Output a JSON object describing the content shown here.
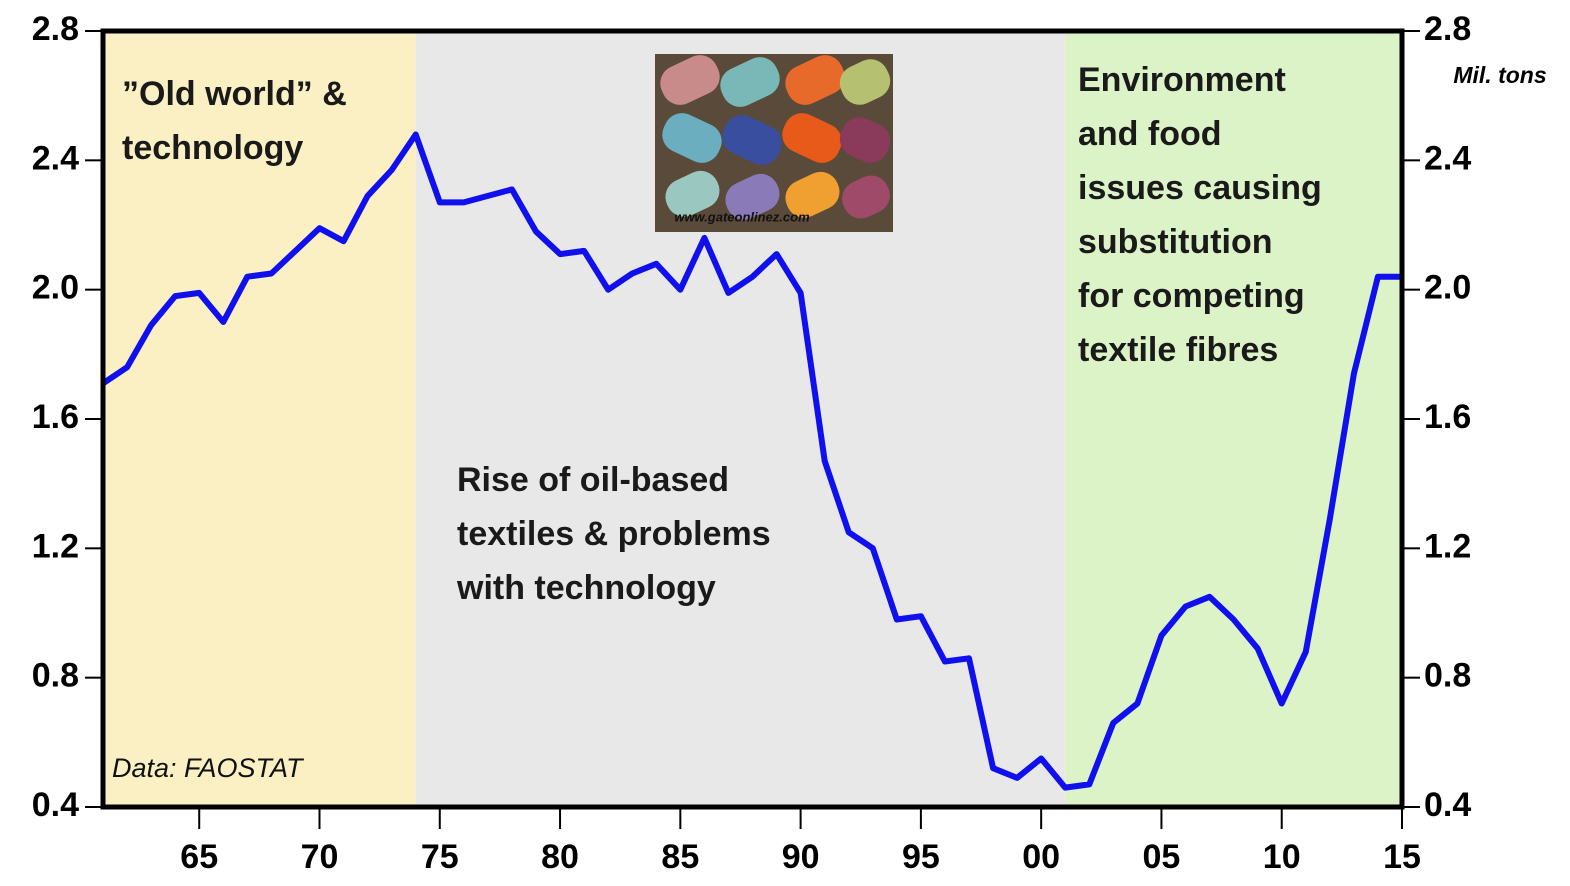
{
  "chart_data": {
    "type": "line",
    "x": [
      1961,
      1962,
      1963,
      1964,
      1965,
      1966,
      1967,
      1968,
      1969,
      1970,
      1971,
      1972,
      1973,
      1974,
      1975,
      1976,
      1977,
      1978,
      1979,
      1980,
      1981,
      1982,
      1983,
      1984,
      1985,
      1986,
      1987,
      1988,
      1989,
      1990,
      1991,
      1992,
      1993,
      1994,
      1995,
      1996,
      1997,
      1998,
      1999,
      2000,
      2001,
      2002,
      2003,
      2004,
      2005,
      2006,
      2007,
      2008,
      2009,
      2010,
      2011,
      2012,
      2013,
      2014,
      2015
    ],
    "series": [
      {
        "color": "#1010ee",
        "values": [
          1.71,
          1.76,
          1.89,
          1.98,
          1.99,
          1.9,
          2.04,
          2.05,
          2.12,
          2.19,
          2.15,
          2.29,
          2.37,
          2.48,
          2.27,
          2.27,
          2.29,
          2.31,
          2.18,
          2.11,
          2.12,
          2.0,
          2.05,
          2.08,
          2.0,
          2.16,
          1.99,
          2.04,
          2.11,
          1.99,
          1.47,
          1.25,
          1.2,
          0.98,
          0.99,
          0.85,
          0.86,
          0.52,
          0.49,
          0.55,
          0.46,
          0.47,
          0.66,
          0.72,
          0.93,
          1.02,
          1.05,
          0.98,
          0.89,
          0.72,
          0.88,
          1.29,
          1.74,
          2.04,
          2.04
        ]
      }
    ],
    "xlim": [
      1961,
      2015
    ],
    "xticks": [
      {
        "value": 1965,
        "label": "65"
      },
      {
        "value": 1970,
        "label": "70"
      },
      {
        "value": 1975,
        "label": "75"
      },
      {
        "value": 1980,
        "label": "80"
      },
      {
        "value": 1985,
        "label": "85"
      },
      {
        "value": 1990,
        "label": "90"
      },
      {
        "value": 1995,
        "label": "95"
      },
      {
        "value": 2000,
        "label": "00"
      },
      {
        "value": 2005,
        "label": "05"
      },
      {
        "value": 2010,
        "label": "10"
      },
      {
        "value": 2015,
        "label": "15"
      }
    ],
    "ylim": [
      0.4,
      2.8
    ],
    "yticks": [
      0.4,
      0.8,
      1.2,
      1.6,
      {
        "value": 2,
        "label": "2.0"
      },
      2.4,
      2.8
    ],
    "y2lim": [
      0.4,
      2.8
    ],
    "y2ticks": [
      0.4,
      0.8,
      1.2,
      1.6,
      {
        "value": 2,
        "label": "2.0"
      },
      2.4,
      2.8
    ],
    "y2label": "Mil. tons",
    "regions": [
      {
        "from": 1961,
        "to": 1974,
        "color": "#fbf0c4",
        "text": [
          "”Old world” &",
          "technology"
        ]
      },
      {
        "from": 1974,
        "to": 2001,
        "color": "#e8e8e8",
        "text": [
          "Rise of oil-based",
          "textiles & problems",
          "with technology"
        ]
      },
      {
        "from": 2001,
        "to": 2015,
        "color": "#dcf2c7",
        "text": [
          "Environment",
          "and food",
          "issues causing",
          "substitution",
          "for competing",
          "textile fibres"
        ]
      }
    ],
    "source": "Data: FAOSTAT",
    "image_caption": "www.gateonlinez.com"
  }
}
